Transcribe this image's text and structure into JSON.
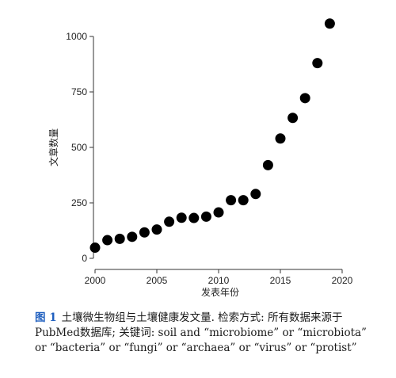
{
  "chart_data": {
    "type": "scatter",
    "xlabel": "发表年份",
    "ylabel": "文章数量",
    "xlim": [
      1999,
      2020.5
    ],
    "ylim": [
      0,
      1100
    ],
    "x_ticks": [
      2000,
      2005,
      2010,
      2015,
      2020
    ],
    "y_ticks": [
      0,
      250,
      500,
      750,
      1000
    ],
    "series": [
      {
        "x": [
          2000,
          2001,
          2002,
          2003,
          2004,
          2005,
          2006,
          2007,
          2008,
          2009,
          2010,
          2011,
          2012,
          2013,
          2014,
          2015,
          2016,
          2017,
          2018,
          2019
        ],
        "y": [
          48,
          82,
          88,
          97,
          117,
          130,
          165,
          183,
          182,
          188,
          207,
          262,
          262,
          290,
          420,
          540,
          633,
          722,
          880,
          1058
        ]
      }
    ],
    "colors": {
      "marker": "#000000"
    },
    "grid": false
  },
  "caption": {
    "label": "图 1",
    "text": "土壤微生物组与土壤健康发文量. 检索方式: 所有数据来源于PubMed数据库; 关键词: soil and “microbiome” or “microbiota” or “bacteria” or “fungi” or “archaea” or “virus” or “protist”"
  }
}
